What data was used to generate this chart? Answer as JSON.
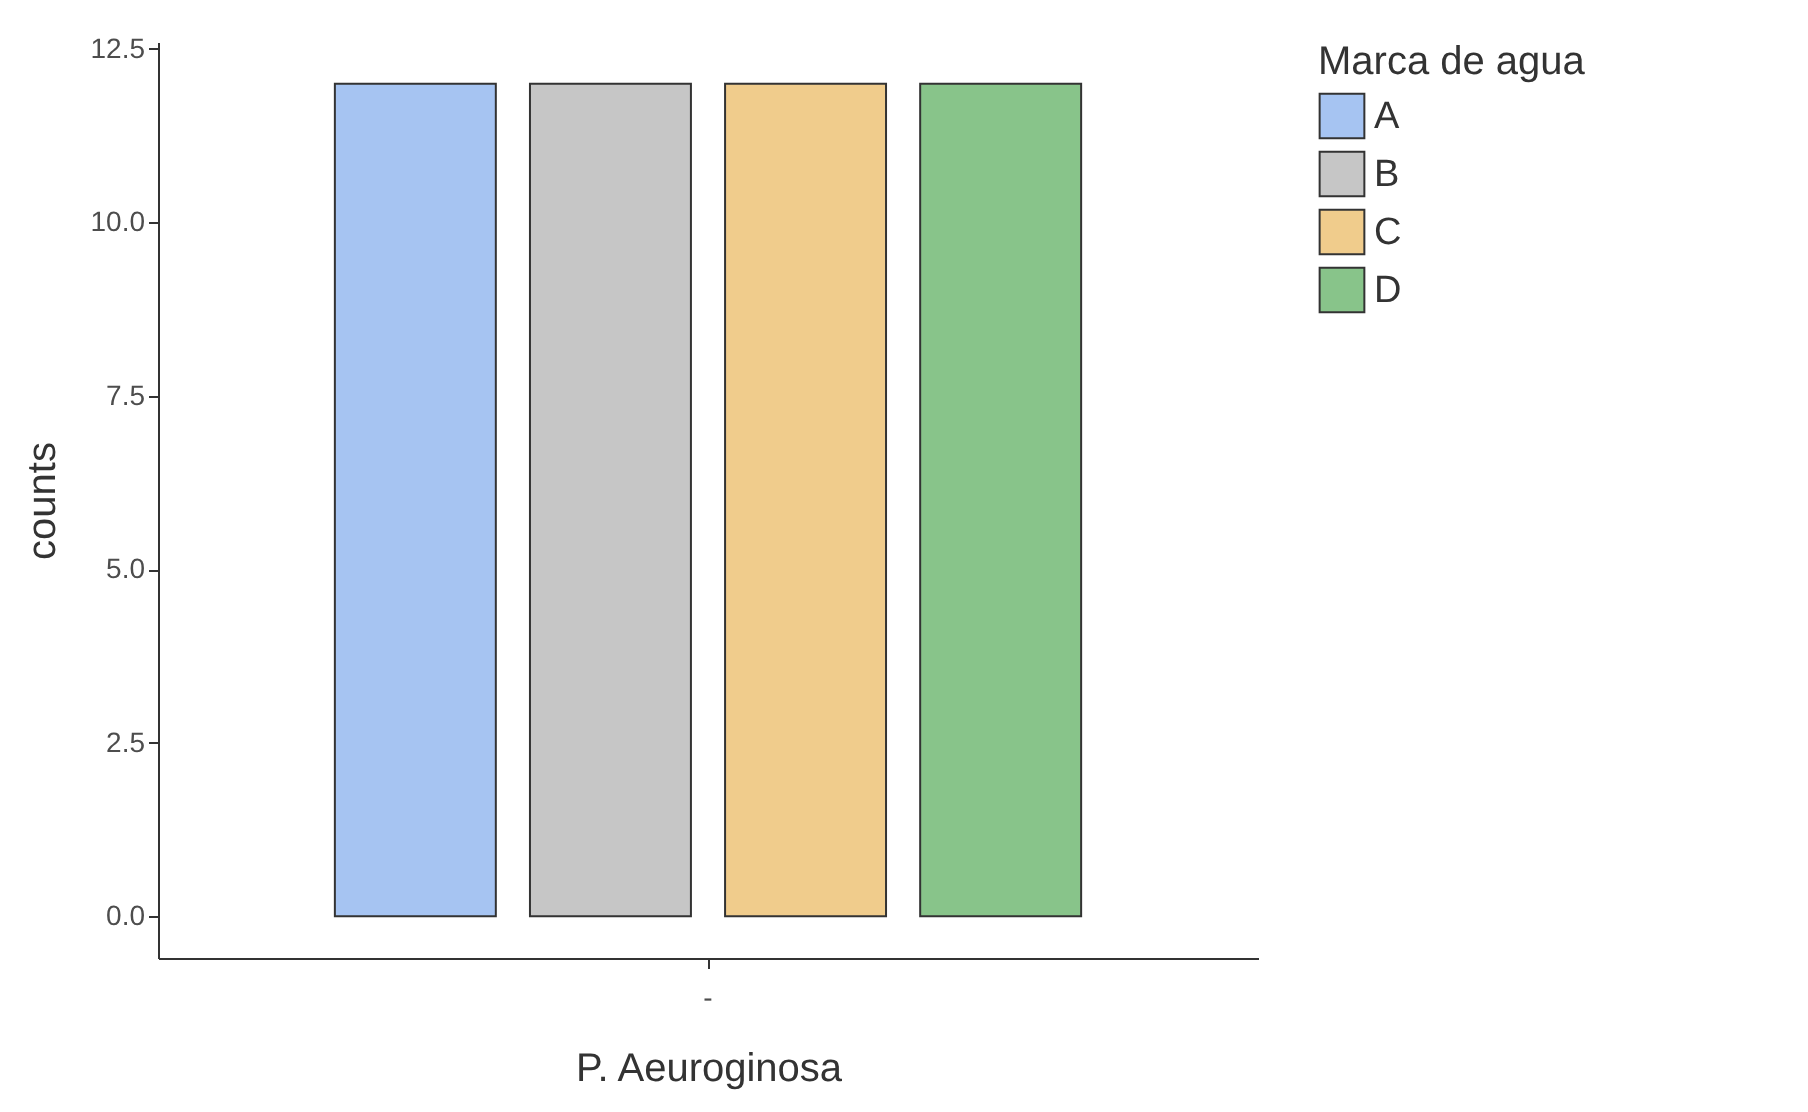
{
  "chart_data": {
    "type": "bar",
    "xlabel": "P. Aeuroginosa",
    "ylabel": "counts",
    "legend_title": "Marca de agua",
    "legend": "right",
    "categories": [
      "-"
    ],
    "series": [
      {
        "name": "A",
        "color": "#a6c4f2",
        "values": [
          12
        ]
      },
      {
        "name": "B",
        "color": "#c6c6c6",
        "values": [
          12
        ]
      },
      {
        "name": "C",
        "color": "#f0cc8c",
        "values": [
          12
        ]
      },
      {
        "name": "D",
        "color": "#88c48a",
        "values": [
          12
        ]
      }
    ],
    "ylim": [
      -0.6,
      12.6
    ],
    "yticks": [
      {
        "value": 0,
        "label": "0.0"
      },
      {
        "value": 2.5,
        "label": "2.5"
      },
      {
        "value": 5,
        "label": "5.0"
      },
      {
        "value": 7.5,
        "label": "7.5"
      },
      {
        "value": 10,
        "label": "10.0"
      },
      {
        "value": 12.5,
        "label": "12.5"
      }
    ]
  }
}
